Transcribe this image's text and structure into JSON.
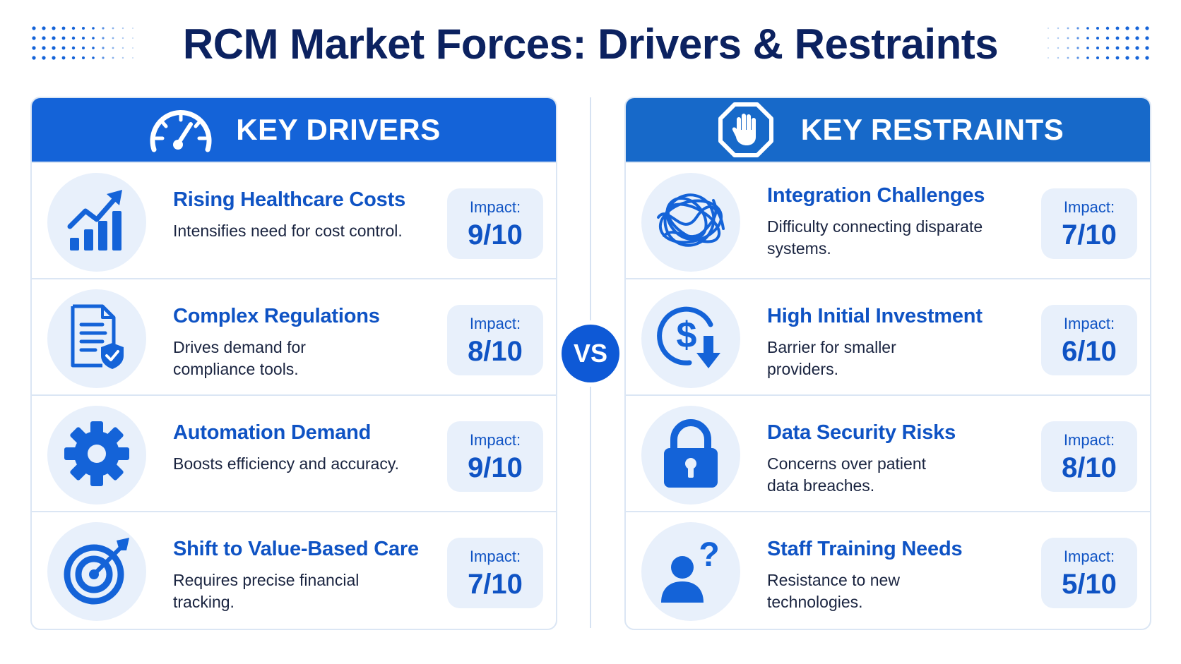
{
  "title": "RCM Market Forces: Drivers & Restraints",
  "vs_label": "VS",
  "colors": {
    "primary": "#1463d8",
    "dark_navy": "#0c2260",
    "light_fill": "#e8f0fb"
  },
  "drivers": {
    "heading": "KEY DRIVERS",
    "icon": "speedometer-icon",
    "items": [
      {
        "title": "Rising Healthcare Costs",
        "description": "Intensifies need for cost control.",
        "impact_label": "Impact:",
        "impact": "9/10",
        "icon": "rising-bar-chart-icon"
      },
      {
        "title": "Complex Regulations",
        "description": "Drives demand for compliance tools.",
        "impact_label": "Impact:",
        "impact": "8/10",
        "icon": "document-shield-icon"
      },
      {
        "title": "Automation Demand",
        "description": "Boosts efficiency and accuracy.",
        "impact_label": "Impact:",
        "impact": "9/10",
        "icon": "gear-icon"
      },
      {
        "title": "Shift to Value-Based Care",
        "description": "Requires precise financial tracking.",
        "impact_label": "Impact:",
        "impact": "7/10",
        "icon": "target-icon"
      }
    ]
  },
  "restraints": {
    "heading": "KEY RESTRAINTS",
    "icon": "stop-hand-icon",
    "items": [
      {
        "title": "Integration Challenges",
        "description": "Difficulty connecting disparate systems.",
        "impact_label": "Impact:",
        "impact": "7/10",
        "icon": "tangled-lines-icon"
      },
      {
        "title": "High Initial Investment",
        "description": "Barrier for smaller providers.",
        "impact_label": "Impact:",
        "impact": "6/10",
        "icon": "dollar-down-icon"
      },
      {
        "title": "Data Security Risks",
        "description": "Concerns over patient data breaches.",
        "impact_label": "Impact:",
        "impact": "8/10",
        "icon": "padlock-icon"
      },
      {
        "title": "Staff Training Needs",
        "description": "Resistance to new technologies.",
        "impact_label": "Impact:",
        "impact": "5/10",
        "icon": "person-question-icon"
      }
    ]
  }
}
